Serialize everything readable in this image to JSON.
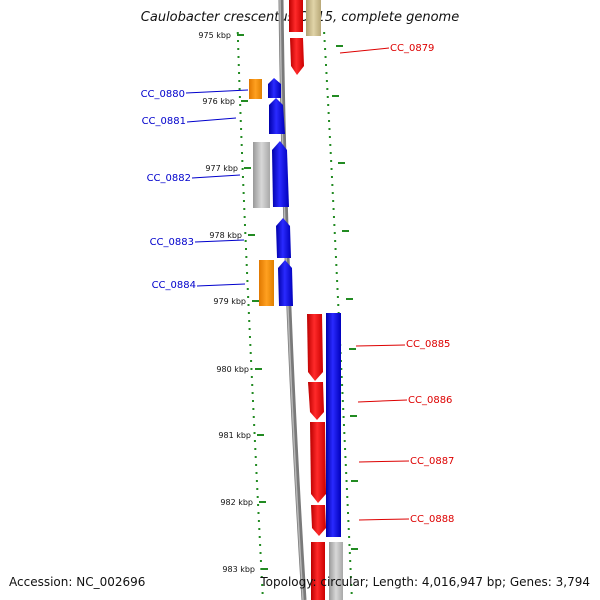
{
  "title": "Caulobacter crescentus CB15, complete genome",
  "footer": {
    "accession": "Accession: NC_002696",
    "stats": "Topology: circular; Length: 4,016,947 bp; Genes: 3,794"
  },
  "scale": {
    "ticks": [
      "975 kbp",
      "976 kbp",
      "977 kbp",
      "978 kbp",
      "979 kbp",
      "980 kbp",
      "981 kbp",
      "982 kbp",
      "983 kbp"
    ]
  },
  "genes_left": [
    {
      "label": "CC_0880",
      "color": "#0000cc"
    },
    {
      "label": "CC_0881",
      "color": "#0000cc"
    },
    {
      "label": "CC_0882",
      "color": "#0000cc"
    },
    {
      "label": "CC_0883",
      "color": "#0000cc"
    },
    {
      "label": "CC_0884",
      "color": "#0000cc"
    }
  ],
  "genes_right": [
    {
      "label": "CC_0879",
      "color": "#dd0000"
    },
    {
      "label": "CC_0885",
      "color": "#dd0000"
    },
    {
      "label": "CC_0886",
      "color": "#dd0000"
    },
    {
      "label": "CC_0887",
      "color": "#dd0000"
    },
    {
      "label": "CC_0888",
      "color": "#dd0000"
    }
  ],
  "colors": {
    "forward_cds": "#0000ff",
    "reverse_cds": "#ff0000",
    "orange_feature": "#ff8c00",
    "gray_feature": "#b4b4b4",
    "tan_feature": "#c8b98a",
    "backbone": "#8a8a8a",
    "dotted_ring": "#228b22"
  }
}
